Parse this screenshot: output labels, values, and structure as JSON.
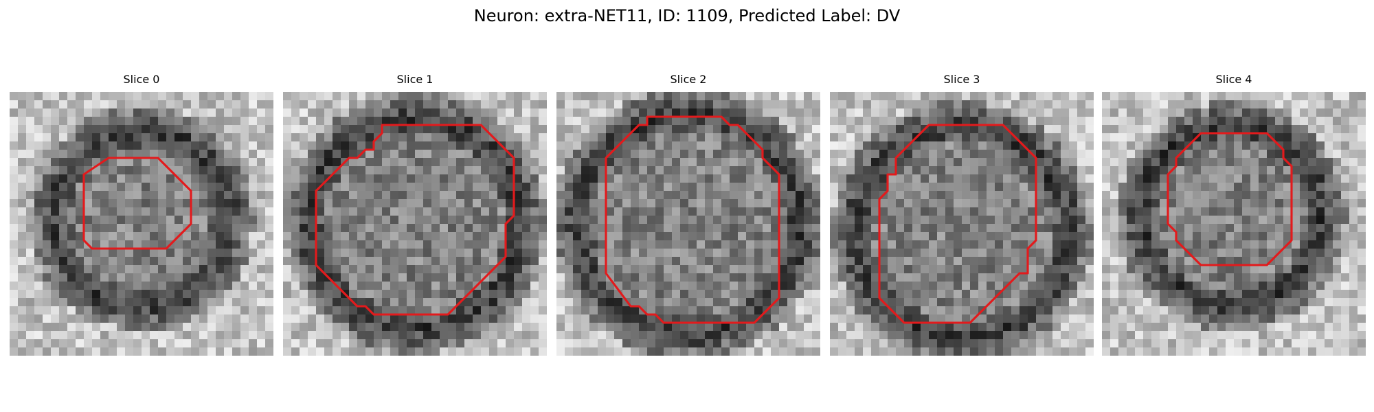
{
  "figure": {
    "title": "Neuron: extra-NET11, ID: 1109, Predicted Label: DV"
  },
  "contour_color": "#e31a1c",
  "panels": [
    {
      "label": "Slice 0",
      "seed": 11,
      "ring": [
        0.5,
        0.48,
        0.33
      ],
      "poly": [
        [
          12,
          8
        ],
        [
          18,
          8
        ],
        [
          22,
          12
        ],
        [
          22,
          16
        ],
        [
          19,
          19
        ],
        [
          10,
          19
        ],
        [
          9,
          18
        ],
        [
          9,
          16
        ],
        [
          9,
          10
        ]
      ]
    },
    {
      "label": "Slice 1",
      "seed": 23,
      "ring": [
        0.5,
        0.5,
        0.4
      ],
      "poly": [
        [
          12,
          4
        ],
        [
          24,
          4
        ],
        [
          28,
          8
        ],
        [
          28,
          15
        ],
        [
          27,
          16
        ],
        [
          27,
          20
        ],
        [
          26,
          21
        ],
        [
          20,
          27
        ],
        [
          11,
          27
        ],
        [
          10,
          26
        ],
        [
          9,
          26
        ],
        [
          4,
          21
        ],
        [
          4,
          12
        ],
        [
          8,
          8
        ],
        [
          9,
          8
        ],
        [
          10,
          7
        ],
        [
          11,
          7
        ],
        [
          11,
          6
        ],
        [
          12,
          5
        ]
      ]
    },
    {
      "label": "Slice 2",
      "seed": 37,
      "ring": [
        0.5,
        0.5,
        0.42
      ],
      "poly": [
        [
          11,
          3
        ],
        [
          20,
          3
        ],
        [
          21,
          4
        ],
        [
          22,
          4
        ],
        [
          25,
          7
        ],
        [
          25,
          8
        ],
        [
          27,
          10
        ],
        [
          27,
          25
        ],
        [
          24,
          28
        ],
        [
          13,
          28
        ],
        [
          12,
          27
        ],
        [
          11,
          27
        ],
        [
          10,
          26
        ],
        [
          9,
          26
        ],
        [
          6,
          22
        ],
        [
          6,
          8
        ],
        [
          10,
          4
        ],
        [
          11,
          4
        ]
      ]
    },
    {
      "label": "Slice 3",
      "seed": 53,
      "ring": [
        0.5,
        0.53,
        0.4
      ],
      "poly": [
        [
          12,
          4
        ],
        [
          21,
          4
        ],
        [
          25,
          8
        ],
        [
          25,
          18
        ],
        [
          24,
          19
        ],
        [
          24,
          22
        ],
        [
          23,
          22
        ],
        [
          17,
          28
        ],
        [
          9,
          28
        ],
        [
          6,
          25
        ],
        [
          6,
          13
        ],
        [
          7,
          12
        ],
        [
          7,
          10
        ],
        [
          8,
          10
        ],
        [
          8,
          8
        ],
        [
          12,
          4
        ]
      ]
    },
    {
      "label": "Slice 4",
      "seed": 71,
      "ring": [
        0.49,
        0.47,
        0.34
      ],
      "poly": [
        [
          13,
          5
        ],
        [
          20,
          5
        ],
        [
          22,
          7
        ],
        [
          22,
          8
        ],
        [
          23,
          9
        ],
        [
          23,
          18
        ],
        [
          20,
          21
        ],
        [
          12,
          21
        ],
        [
          9,
          18
        ],
        [
          9,
          17
        ],
        [
          8,
          16
        ],
        [
          8,
          10
        ],
        [
          9,
          9
        ],
        [
          9,
          8
        ],
        [
          12,
          5
        ]
      ]
    }
  ]
}
